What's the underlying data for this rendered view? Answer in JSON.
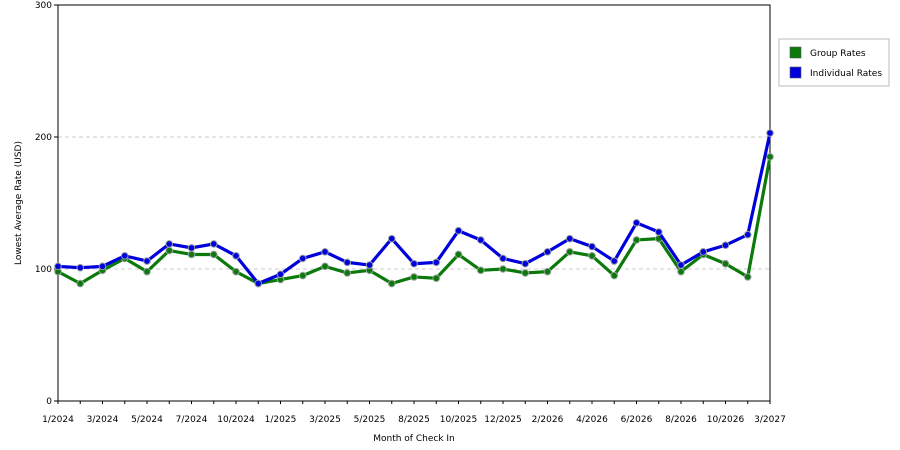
{
  "chart_data": {
    "type": "line",
    "xlabel": "Month of Check In",
    "ylabel": "Lowest Average Rate (USD)",
    "ylim": [
      0,
      300
    ],
    "yticks": [
      0,
      100,
      200,
      300
    ],
    "grid": "horizontal dashed at y ticks",
    "legend_position": "right",
    "x_tick_labels": [
      "1/2024",
      "3/2024",
      "5/2024",
      "7/2024",
      "10/2024",
      "1/2025",
      "3/2025",
      "5/2025",
      "8/2025",
      "10/2025",
      "12/2025",
      "2/2026",
      "4/2026",
      "6/2026",
      "8/2026",
      "10/2026",
      "3/2027"
    ],
    "series": [
      {
        "name": "Group Rates",
        "color": "#0b7a0b",
        "values": [
          98,
          89,
          99,
          108,
          98,
          114,
          111,
          111,
          98,
          89,
          92,
          95,
          102,
          97,
          99,
          89,
          94,
          93,
          111,
          99,
          100,
          97,
          98,
          113,
          110,
          95,
          122,
          123,
          98,
          111,
          104,
          94,
          185
        ]
      },
      {
        "name": "Individual Rates",
        "color": "#0000dd",
        "values": [
          102,
          101,
          102,
          110,
          106,
          119,
          116,
          119,
          110,
          89,
          96,
          108,
          113,
          105,
          103,
          123,
          104,
          105,
          129,
          122,
          108,
          104,
          113,
          123,
          117,
          106,
          135,
          128,
          103,
          113,
          118,
          126,
          203
        ]
      }
    ]
  }
}
